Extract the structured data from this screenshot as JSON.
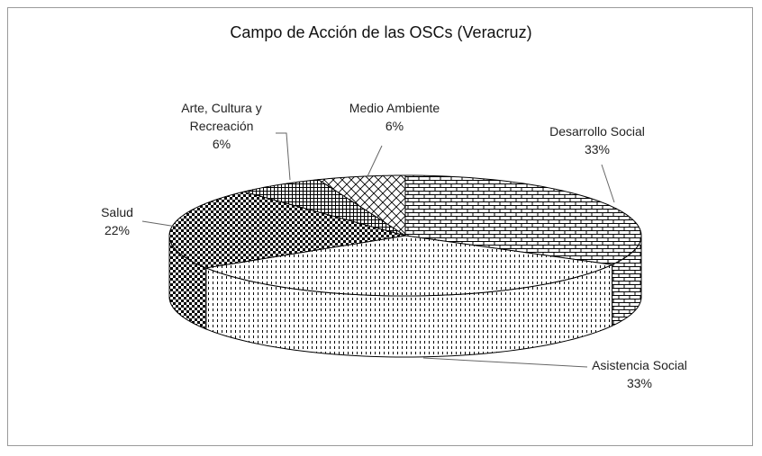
{
  "chart_data": {
    "type": "pie",
    "title": "Campo de Acción de las OSCs (Veracruz)",
    "categories": [
      "Desarrollo Social",
      "Asistencia Social",
      "Salud",
      "Arte, Cultura y Recreación",
      "Medio Ambiente"
    ],
    "values": [
      33,
      33,
      22,
      6,
      6
    ],
    "value_labels": [
      "33%",
      "33%",
      "22%",
      "6%",
      "6%"
    ],
    "three_d": true
  }
}
